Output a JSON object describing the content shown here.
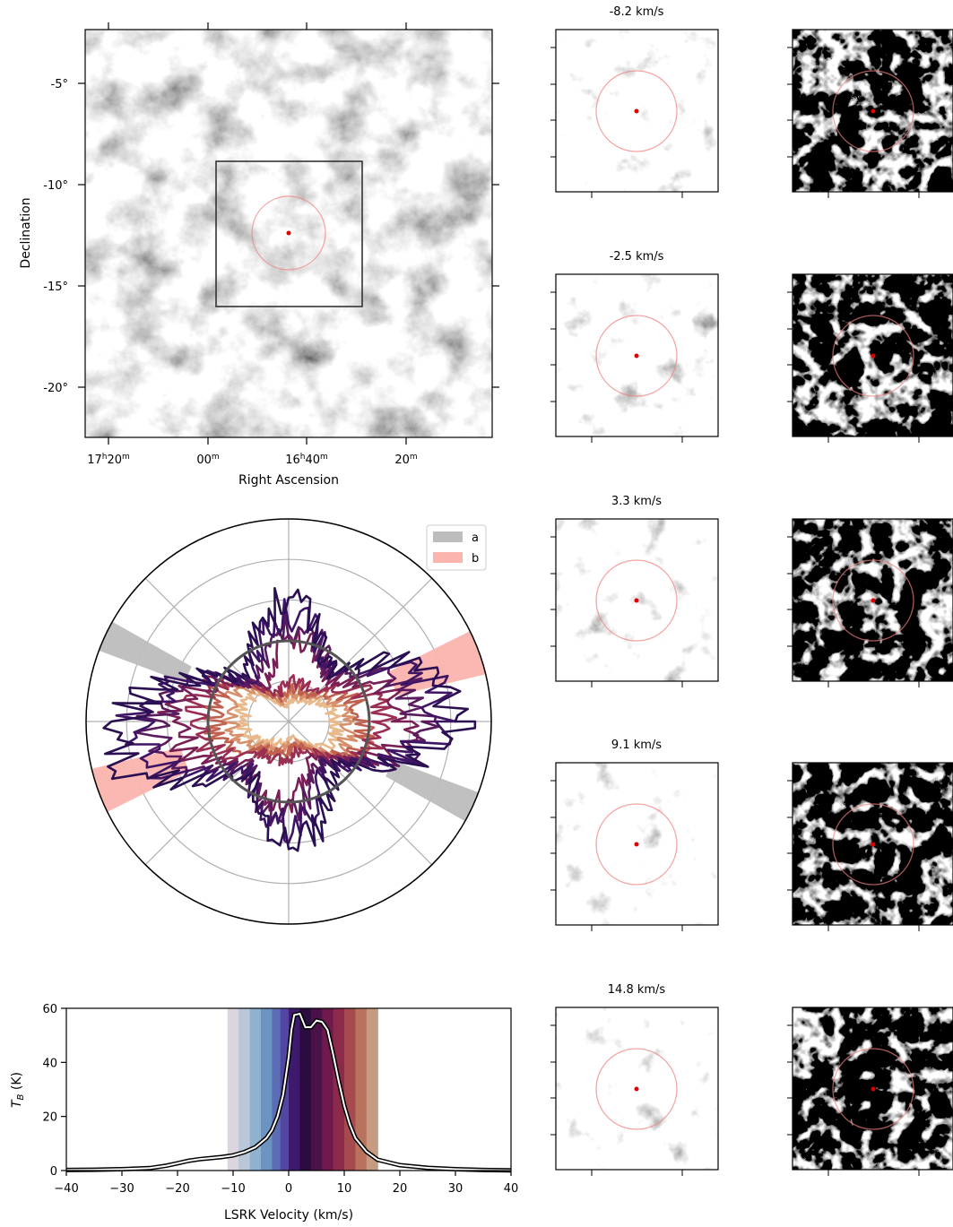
{
  "sky_map": {
    "xlabel": "Right Ascension",
    "ylabel": "Declination",
    "x_ticks": [
      {
        "h": "17",
        "hs": "h",
        "m": "20",
        "ms": "m"
      },
      {
        "h": "",
        "hs": "",
        "m": "00",
        "ms": "m"
      },
      {
        "h": "16",
        "hs": "h",
        "m": "40",
        "ms": "m"
      },
      {
        "h": "",
        "hs": "",
        "m": "20",
        "ms": "m"
      }
    ],
    "y_ticks": [
      "-5°",
      "-10°",
      "-15°",
      "-20°"
    ],
    "colormap": "gray"
  },
  "channel_panels": [
    {
      "label": "-8.2 km/s"
    },
    {
      "label": "-2.5 km/s"
    },
    {
      "label": "3.3 km/s"
    },
    {
      "label": "9.1 km/s"
    },
    {
      "label": "14.8 km/s"
    }
  ],
  "annotation_colors": {
    "circle": "#f08080",
    "center": "#e00000",
    "box": "#333333"
  },
  "polar": {
    "legend": [
      {
        "label": "a",
        "color": "#bdbdbd"
      },
      {
        "label": "b",
        "color": "#fbb4ae"
      }
    ],
    "wedge_a_angle_deg": 155,
    "wedge_b_angle_deg": 20,
    "ring_fractions": [
      0.2,
      0.4,
      0.6,
      0.8,
      1.0
    ],
    "reference_circle_fraction": 0.4
  },
  "chart_data": {
    "type": "line",
    "xlabel": "LSRK Velocity (km/s)",
    "ylabel_main": "T",
    "ylabel_sub": "B",
    "ylabel_unit": " (K)",
    "xlim": [
      -40,
      40
    ],
    "ylim": [
      0,
      60
    ],
    "x_ticks": [
      "−40",
      "−30",
      "−20",
      "−10",
      "0",
      "10",
      "20",
      "30",
      "40"
    ],
    "y_ticks": [
      "0",
      "20",
      "40",
      "60"
    ],
    "velocity_band": [
      -11,
      16
    ],
    "series": [
      {
        "x": [
          -40,
          -35,
          -30,
          -25,
          -22,
          -20,
          -18,
          -16,
          -14,
          -12,
          -10,
          -8,
          -6,
          -4,
          -3,
          -2,
          -1,
          0,
          0.5,
          1,
          2,
          3,
          4,
          5,
          6,
          7,
          8,
          9,
          10,
          11,
          12,
          14,
          16,
          18,
          20,
          25,
          30,
          35,
          40
        ],
        "y": [
          0.2,
          0.3,
          0.5,
          0.9,
          1.8,
          2.7,
          3.6,
          4.2,
          4.6,
          5,
          5.6,
          6.8,
          8.6,
          12,
          15,
          20,
          28,
          42,
          52,
          57.5,
          58,
          53,
          53,
          55.5,
          55,
          52,
          43,
          33,
          24,
          17,
          12,
          7,
          4,
          3,
          2,
          1,
          0.5,
          0.2,
          0.1
        ]
      }
    ]
  }
}
